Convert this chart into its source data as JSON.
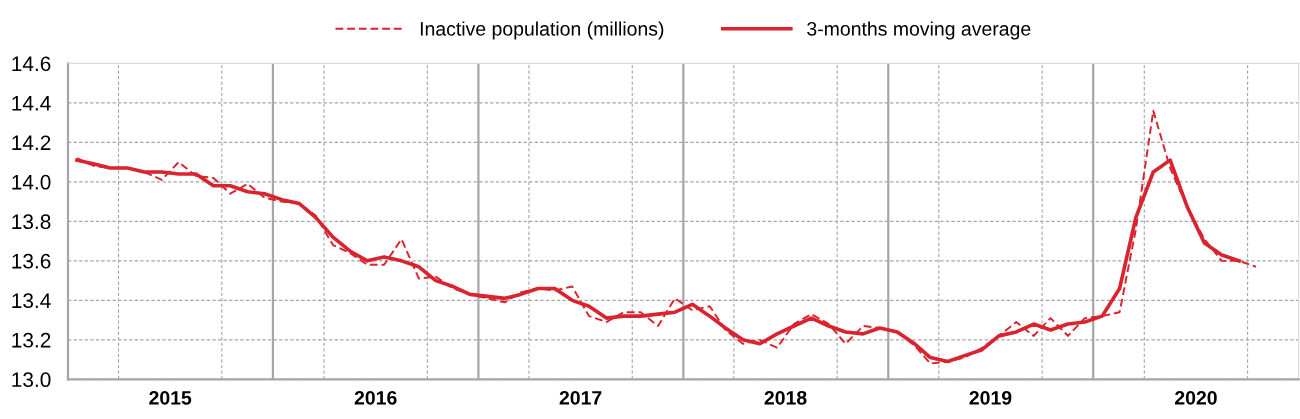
{
  "chart_data": {
    "type": "line",
    "x": [
      "2015-01",
      "2015-02",
      "2015-03",
      "2015-04",
      "2015-05",
      "2015-06",
      "2015-07",
      "2015-08",
      "2015-09",
      "2015-10",
      "2015-11",
      "2015-12",
      "2016-01",
      "2016-02",
      "2016-03",
      "2016-04",
      "2016-05",
      "2016-06",
      "2016-07",
      "2016-08",
      "2016-09",
      "2016-10",
      "2016-11",
      "2016-12",
      "2017-01",
      "2017-02",
      "2017-03",
      "2017-04",
      "2017-05",
      "2017-06",
      "2017-07",
      "2017-08",
      "2017-09",
      "2017-10",
      "2017-11",
      "2017-12",
      "2018-01",
      "2018-02",
      "2018-03",
      "2018-04",
      "2018-05",
      "2018-06",
      "2018-07",
      "2018-08",
      "2018-09",
      "2018-10",
      "2018-11",
      "2018-12",
      "2019-01",
      "2019-02",
      "2019-03",
      "2019-04",
      "2019-05",
      "2019-06",
      "2019-07",
      "2019-08",
      "2019-09",
      "2019-10",
      "2019-11",
      "2019-12",
      "2020-01",
      "2020-02",
      "2020-03",
      "2020-04",
      "2020-05",
      "2020-06",
      "2020-07",
      "2020-08",
      "2020-09",
      "2020-10"
    ],
    "series": [
      {
        "name": "Inactive population (millions)",
        "color": "#d9232e",
        "line_style": "dashed",
        "values": [
          14.12,
          14.08,
          14.07,
          14.07,
          14.05,
          14.01,
          14.1,
          14.03,
          14.02,
          13.94,
          13.99,
          13.92,
          13.9,
          13.89,
          13.83,
          13.68,
          13.64,
          13.58,
          13.58,
          13.71,
          13.51,
          13.52,
          13.46,
          13.43,
          13.41,
          13.39,
          13.44,
          13.46,
          13.45,
          13.47,
          13.32,
          13.29,
          13.34,
          13.34,
          13.27,
          13.41,
          13.35,
          13.37,
          13.25,
          13.18,
          13.2,
          13.16,
          13.28,
          13.33,
          13.28,
          13.18,
          13.27,
          13.26,
          13.24,
          13.17,
          13.08,
          13.09,
          13.11,
          13.16,
          13.22,
          13.29,
          13.22,
          13.31,
          13.22,
          13.31,
          13.32,
          13.34,
          13.76,
          14.36,
          14.07,
          13.87,
          13.71,
          13.6,
          13.6,
          13.57
        ]
      },
      {
        "name": "3-months moving average",
        "color": "#d9232e",
        "line_style": "solid",
        "values": [
          14.11,
          14.09,
          14.07,
          14.07,
          14.05,
          14.05,
          14.04,
          14.04,
          13.98,
          13.98,
          13.95,
          13.94,
          13.91,
          13.89,
          13.82,
          13.72,
          13.65,
          13.6,
          13.62,
          13.6,
          13.57,
          13.5,
          13.47,
          13.43,
          13.42,
          13.41,
          13.43,
          13.46,
          13.46,
          13.4,
          13.37,
          13.31,
          13.32,
          13.32,
          13.33,
          13.34,
          13.38,
          13.32,
          13.26,
          13.2,
          13.18,
          13.23,
          13.27,
          13.31,
          13.27,
          13.24,
          13.23,
          13.26,
          13.24,
          13.18,
          13.11,
          13.09,
          13.12,
          13.15,
          13.22,
          13.24,
          13.28,
          13.25,
          13.28,
          13.29,
          13.32,
          13.46,
          13.82,
          14.05,
          14.11,
          13.87,
          13.69,
          13.63,
          13.6,
          null
        ]
      }
    ],
    "xlim": [
      "2014-12-16",
      "2020-12-16"
    ],
    "xticks": [
      {
        "value": "2015-03-16",
        "label": null
      },
      {
        "value": "2015-06-16",
        "label": "2015"
      },
      {
        "value": "2015-09-16",
        "label": null
      },
      {
        "value": "2016-03-16",
        "label": null
      },
      {
        "value": "2016-06-16",
        "label": "2016"
      },
      {
        "value": "2016-09-16",
        "label": null
      },
      {
        "value": "2017-03-16",
        "label": null
      },
      {
        "value": "2017-06-16",
        "label": "2017"
      },
      {
        "value": "2017-09-16",
        "label": null
      },
      {
        "value": "2018-03-16",
        "label": null
      },
      {
        "value": "2018-06-16",
        "label": "2018"
      },
      {
        "value": "2018-09-16",
        "label": null
      },
      {
        "value": "2019-03-16",
        "label": null
      },
      {
        "value": "2019-06-16",
        "label": "2019"
      },
      {
        "value": "2019-09-16",
        "label": null
      },
      {
        "value": "2020-03-16",
        "label": null
      },
      {
        "value": "2020-06-16",
        "label": "2020"
      },
      {
        "value": "2020-09-16",
        "label": null
      }
    ],
    "ylim": [
      13.0,
      14.6
    ],
    "yticks": [
      {
        "value": 13.0,
        "label": "13.0"
      },
      {
        "value": 13.2,
        "label": "13.2"
      },
      {
        "value": 13.4,
        "label": "13.4"
      },
      {
        "value": 13.6,
        "label": "13.6"
      },
      {
        "value": 13.8,
        "label": "13.8"
      },
      {
        "value": 14.0,
        "label": "14.0"
      },
      {
        "value": 14.2,
        "label": "14.2"
      },
      {
        "value": 14.4,
        "label": "14.4"
      },
      {
        "value": 14.6,
        "label": "14.6"
      }
    ],
    "ref_lines": [
      {
        "axis": "x",
        "value": "2015-12-16",
        "color": "#a6a6a6"
      },
      {
        "axis": "x",
        "value": "2016-12-16",
        "color": "#a6a6a6"
      },
      {
        "axis": "x",
        "value": "2017-12-16",
        "color": "#a6a6a6"
      },
      {
        "axis": "x",
        "value": "2018-12-16",
        "color": "#a6a6a6"
      },
      {
        "axis": "x",
        "value": "2019-12-16",
        "color": "#a6a6a6"
      }
    ],
    "grid": true,
    "legend": "top",
    "marker": "none"
  }
}
